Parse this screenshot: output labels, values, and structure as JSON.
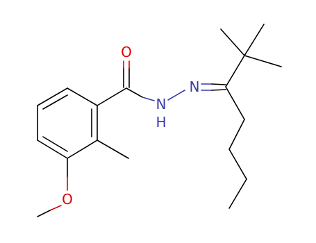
{
  "atoms": [
    {
      "label": "O"
    },
    {
      "label": "N"
    },
    {
      "label": "N"
    },
    {
      "label": "H"
    },
    {
      "label": "O"
    }
  ]
}
